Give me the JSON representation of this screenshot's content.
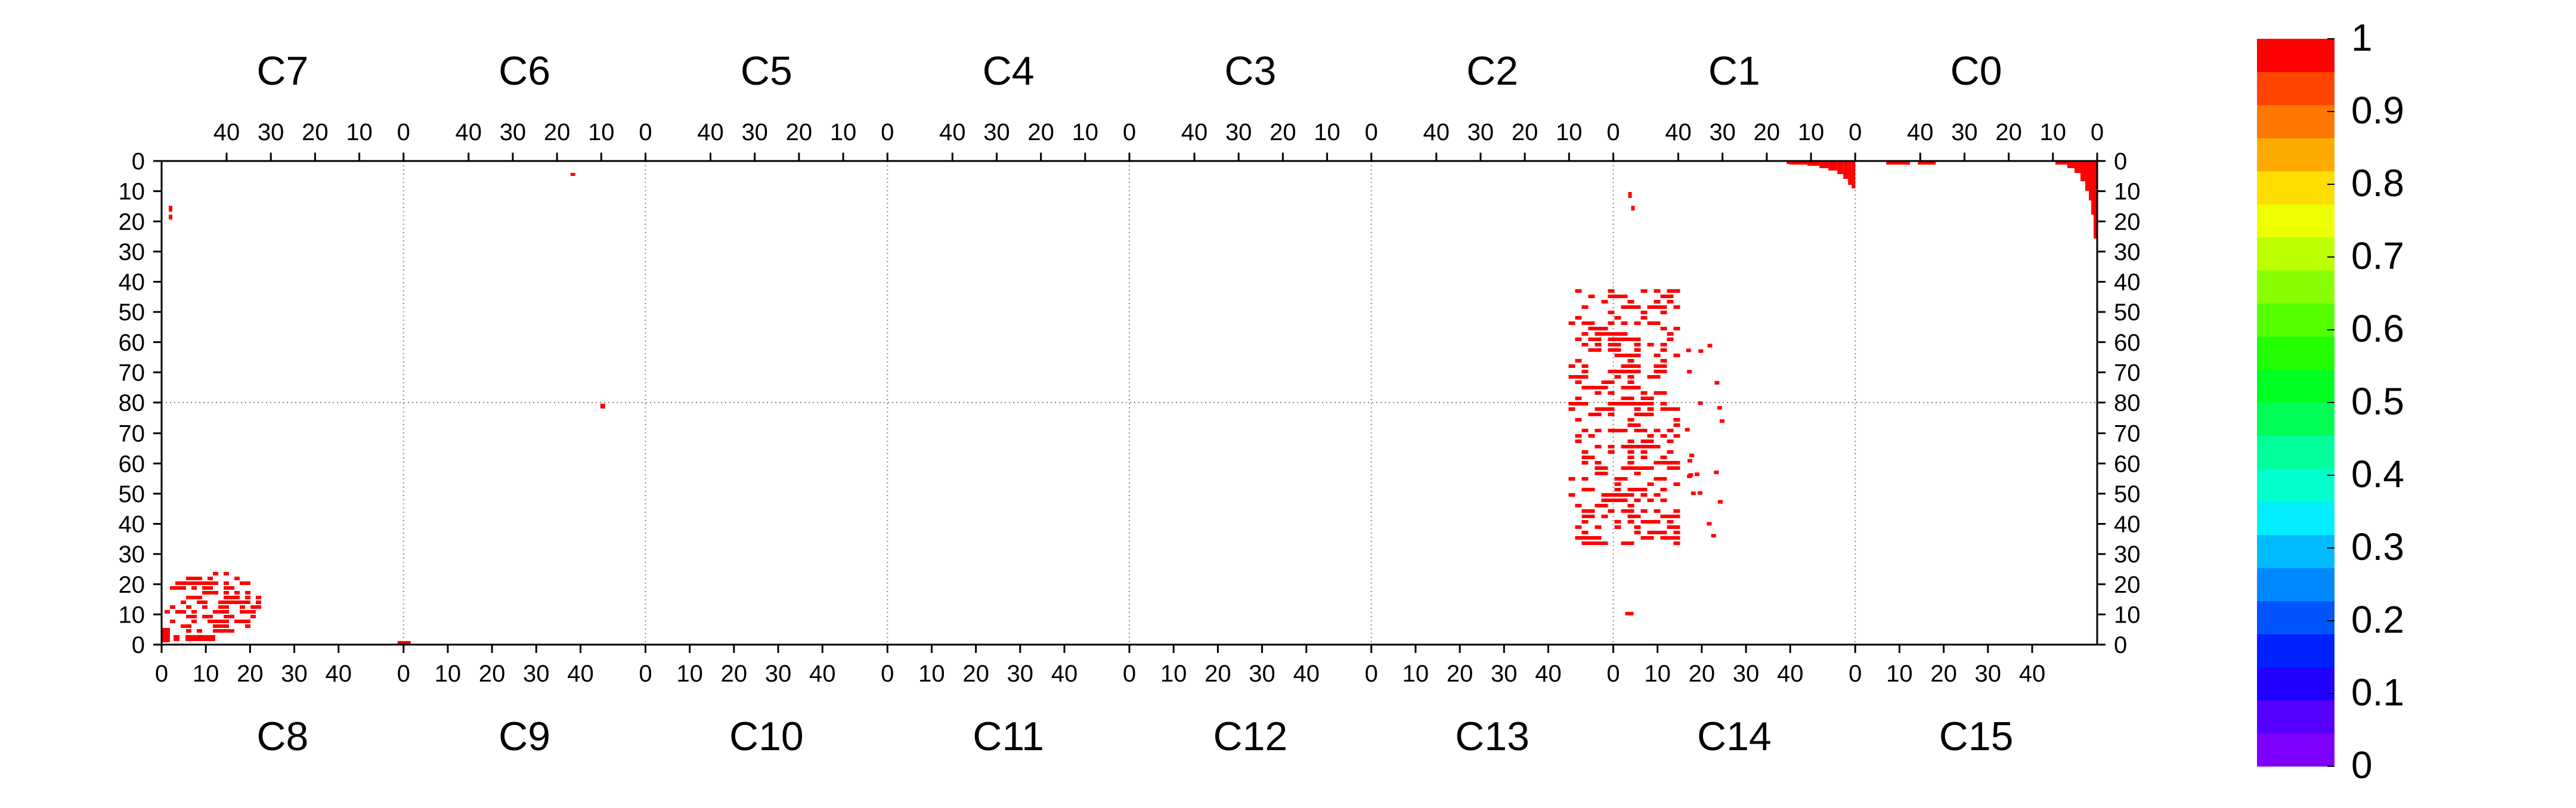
{
  "chart_data": {
    "type": "heatmap",
    "title": "",
    "chips_top": [
      "C7",
      "C6",
      "C5",
      "C4",
      "C3",
      "C2",
      "C1",
      "C0"
    ],
    "chips_bottom": [
      "C8",
      "C9",
      "C10",
      "C11",
      "C12",
      "C13",
      "C14",
      "C15"
    ],
    "top_axis_ticks": [
      "40",
      "30",
      "20",
      "10",
      "0"
    ],
    "bottom_axis_ticks": [
      "0",
      "10",
      "20",
      "30",
      "40"
    ],
    "y_ticks_top_half": [
      "0",
      "10",
      "20",
      "30",
      "40",
      "50",
      "60",
      "70",
      "80"
    ],
    "y_ticks_bottom_half": [
      "70",
      "60",
      "50",
      "40",
      "30",
      "20",
      "10",
      "0"
    ],
    "colorbar": {
      "range": [
        0,
        1
      ],
      "tick_labels": [
        "1",
        "0.9",
        "0.8",
        "0.7",
        "0.6",
        "0.5",
        "0.4",
        "0.3",
        "0.2",
        "0.1",
        "0"
      ],
      "colors": [
        "#7f00ff",
        "#5500ff",
        "#2200ff",
        "#0022ff",
        "#0055ff",
        "#0088ff",
        "#00bbff",
        "#00eeff",
        "#00ffcc",
        "#00ff99",
        "#00ff55",
        "#00ff22",
        "#22ff00",
        "#55ff00",
        "#88ff00",
        "#bbff00",
        "#eeff00",
        "#ffdd00",
        "#ffaa00",
        "#ff7700",
        "#ff4400",
        "#ff0000"
      ]
    },
    "hit_color": "#ff0000",
    "grid": true,
    "clusters": [
      {
        "chip": "C14",
        "region": "central band",
        "value": 1
      },
      {
        "chip": "C8",
        "region": "lower-left corner",
        "value": 1
      },
      {
        "chip": "C1",
        "region": "top-right edge",
        "value": 1
      },
      {
        "chip": "C0",
        "region": "top-right edge",
        "value": 1
      }
    ]
  }
}
